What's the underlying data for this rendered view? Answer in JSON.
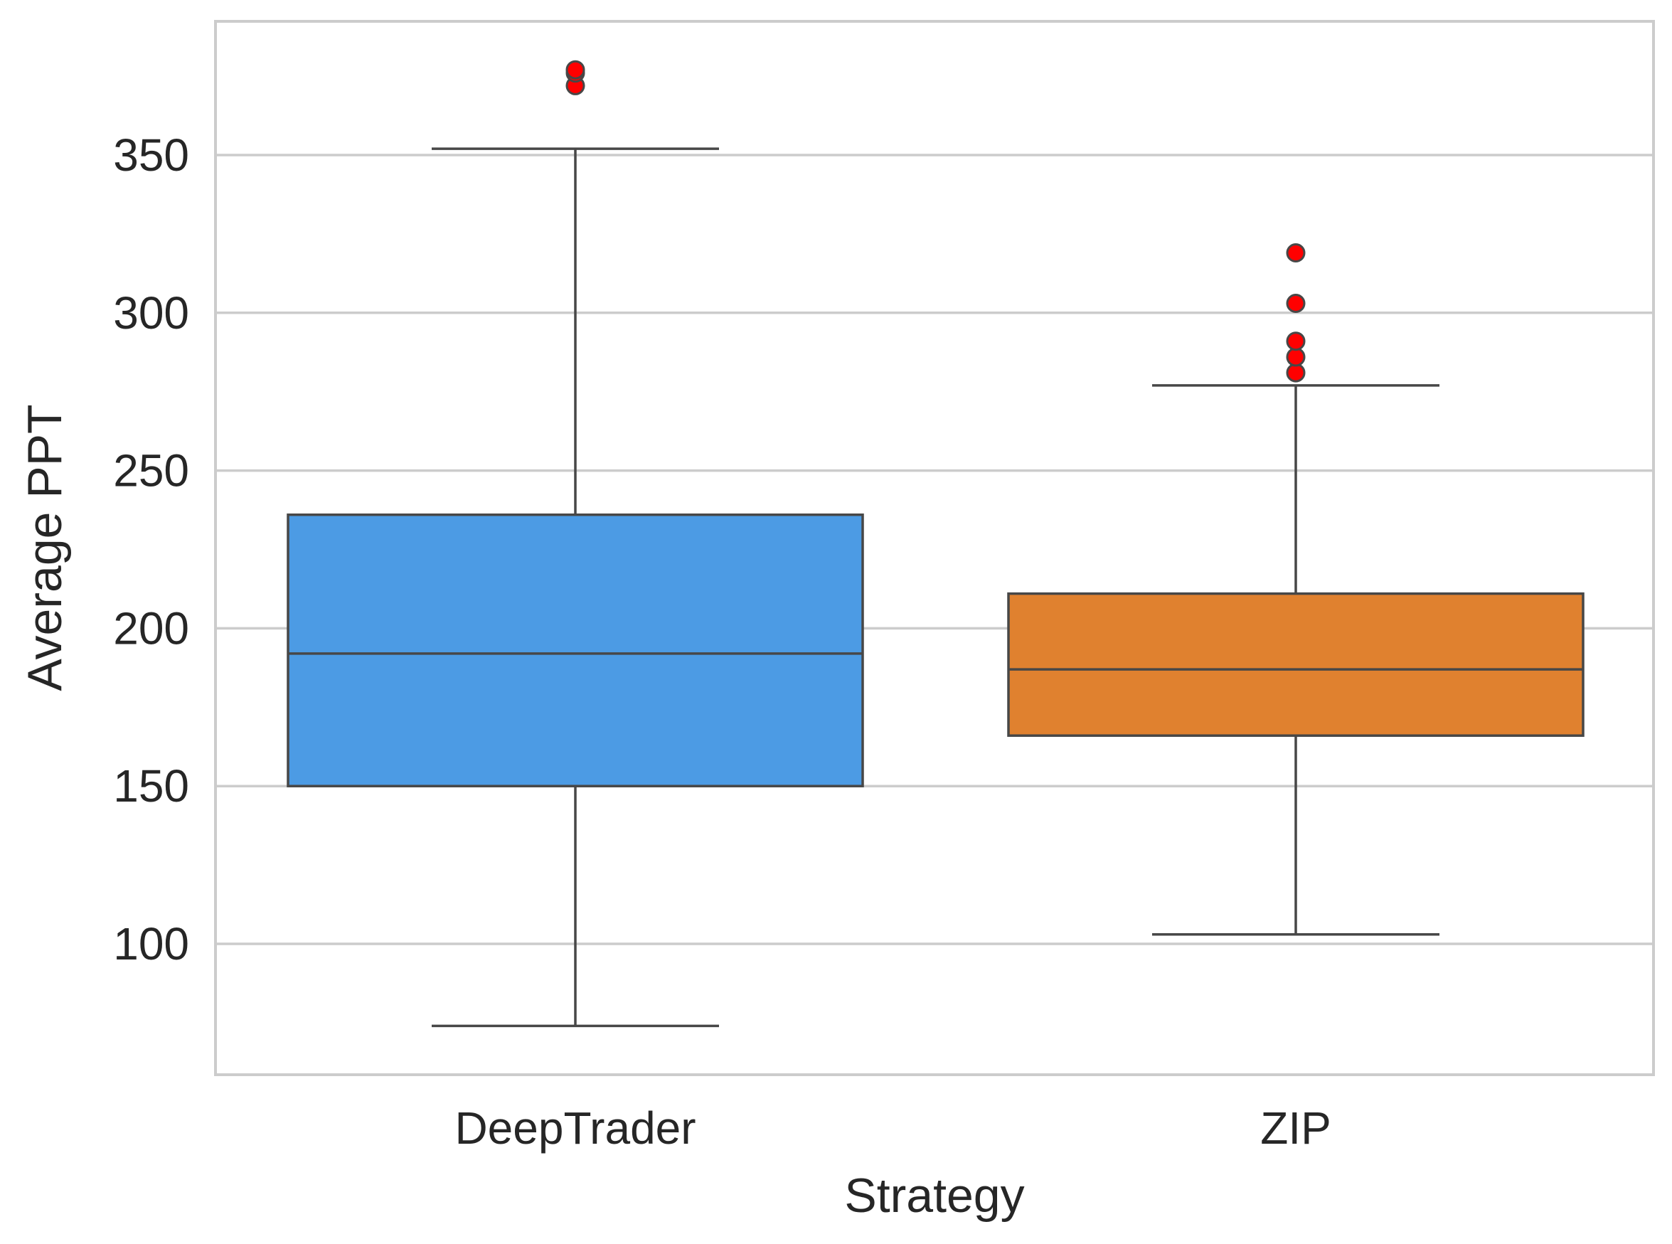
{
  "chart_data": {
    "type": "box",
    "title": "",
    "xlabel": "Strategy",
    "ylabel": "Average PPT",
    "ylim": [
      60,
      390
    ],
    "yticks": [
      100,
      150,
      200,
      250,
      300,
      350
    ],
    "grid": true,
    "legend": "none",
    "categories": [
      "DeepTrader",
      "ZIP"
    ],
    "boxes": [
      {
        "category": "DeepTrader",
        "whisker_low": 74,
        "q1": 150,
        "median": 192,
        "q3": 236,
        "whisker_high": 352,
        "outliers": [
          372,
          376,
          377
        ],
        "color": "#4C9BE4"
      },
      {
        "category": "ZIP",
        "whisker_low": 103,
        "q1": 166,
        "median": 187,
        "q3": 211,
        "whisker_high": 277,
        "outliers": [
          281,
          286,
          291,
          303,
          319
        ],
        "color": "#E0812F"
      }
    ],
    "outlier_color": "#FF0000",
    "edge_color": "#474747",
    "grid_color": "#CCCCCC"
  }
}
